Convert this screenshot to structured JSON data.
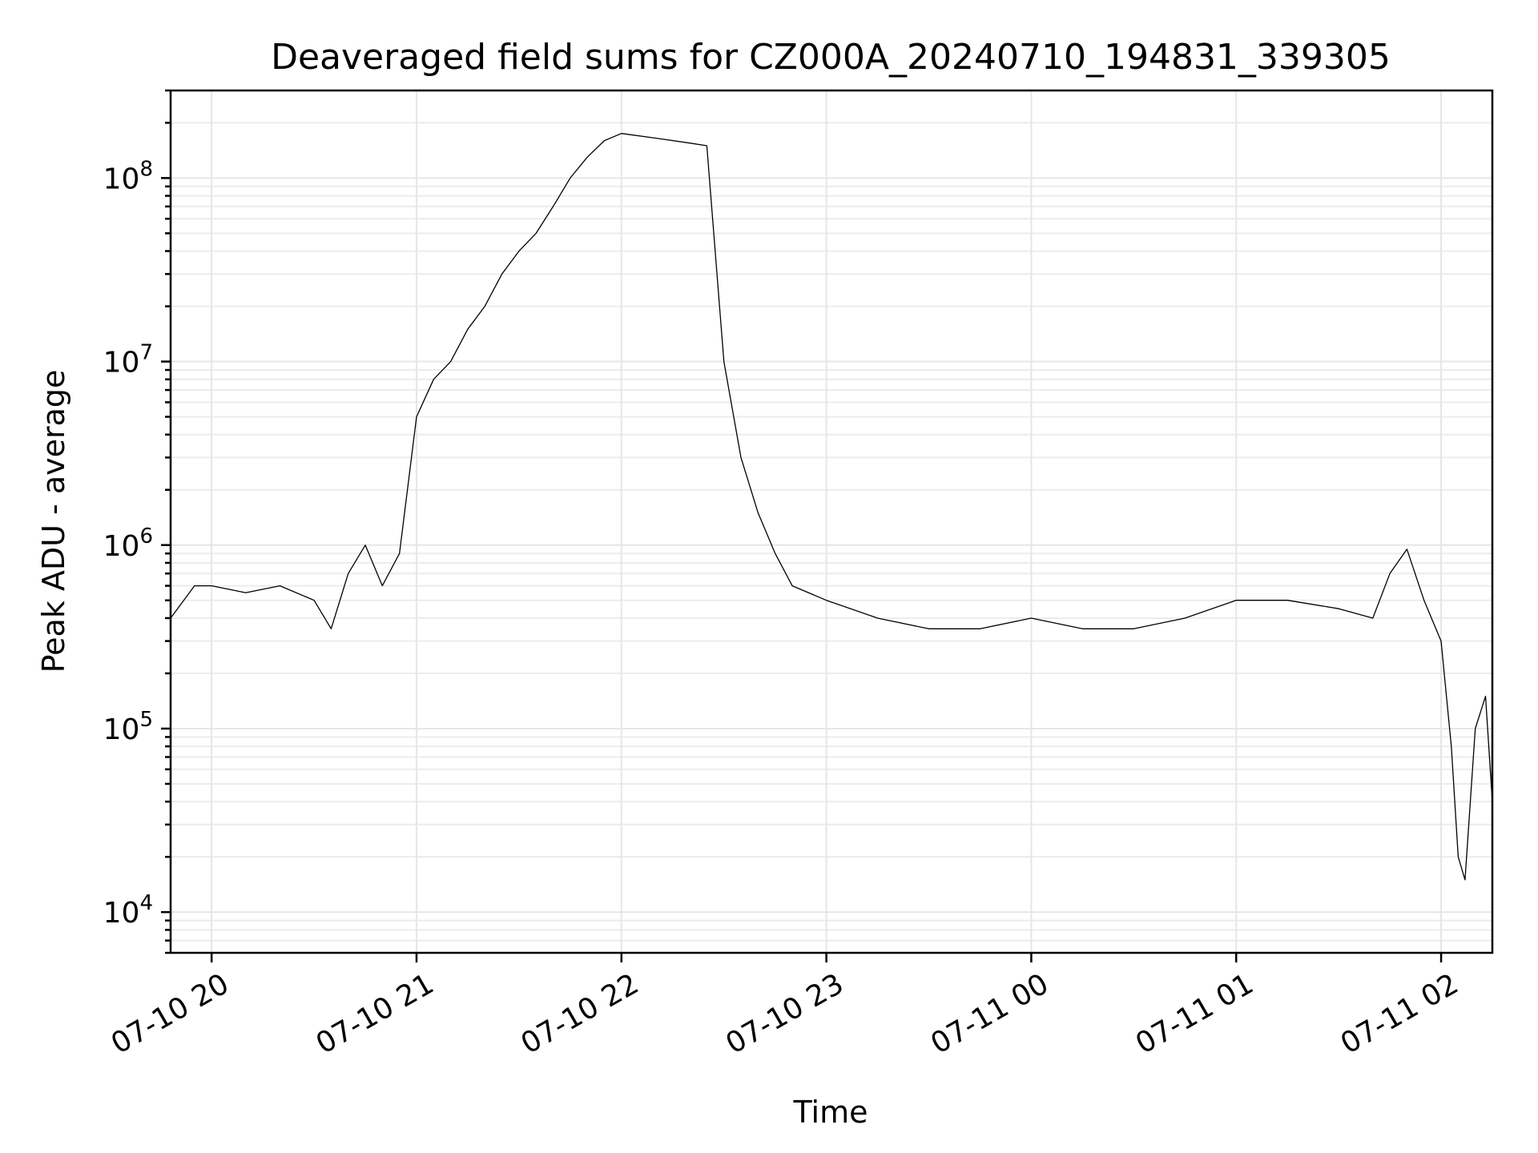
{
  "chart_data": {
    "type": "line",
    "title": "Deaveraged field sums for CZ000A_20240710_194831_339305",
    "xlabel": "Time",
    "ylabel": "Peak ADU - average",
    "yscale": "log",
    "ylim": [
      6000,
      300000000
    ],
    "xlim": [
      "2024-07-10 19:48",
      "2024-07-11 02:15"
    ],
    "grid": true,
    "legend": "none",
    "line_color": "#000000",
    "x_ticks": [
      "07-10 20",
      "07-10 21",
      "07-10 22",
      "07-10 23",
      "07-11 00",
      "07-11 01",
      "07-11 02"
    ],
    "y_ticks": [
      {
        "base": "10",
        "exp": "4",
        "value": 10000
      },
      {
        "base": "10",
        "exp": "5",
        "value": 100000
      },
      {
        "base": "10",
        "exp": "6",
        "value": 1000000
      },
      {
        "base": "10",
        "exp": "7",
        "value": 10000000
      },
      {
        "base": "10",
        "exp": "8",
        "value": 100000000
      }
    ],
    "series": [
      {
        "values": [
          [
            "2024-07-10 19:48",
            400000
          ],
          [
            "2024-07-10 19:55",
            600000
          ],
          [
            "2024-07-10 20:00",
            600000
          ],
          [
            "2024-07-10 20:10",
            550000
          ],
          [
            "2024-07-10 20:20",
            600000
          ],
          [
            "2024-07-10 20:30",
            500000
          ],
          [
            "2024-07-10 20:35",
            350000
          ],
          [
            "2024-07-10 20:40",
            700000
          ],
          [
            "2024-07-10 20:45",
            1000000
          ],
          [
            "2024-07-10 20:50",
            600000
          ],
          [
            "2024-07-10 20:55",
            900000
          ],
          [
            "2024-07-10 21:00",
            5000000
          ],
          [
            "2024-07-10 21:05",
            8000000
          ],
          [
            "2024-07-10 21:10",
            10000000
          ],
          [
            "2024-07-10 21:15",
            15000000
          ],
          [
            "2024-07-10 21:20",
            20000000
          ],
          [
            "2024-07-10 21:25",
            30000000
          ],
          [
            "2024-07-10 21:30",
            40000000
          ],
          [
            "2024-07-10 21:35",
            50000000
          ],
          [
            "2024-07-10 21:40",
            70000000
          ],
          [
            "2024-07-10 21:45",
            100000000
          ],
          [
            "2024-07-10 21:50",
            130000000
          ],
          [
            "2024-07-10 21:55",
            160000000
          ],
          [
            "2024-07-10 22:00",
            175000000
          ],
          [
            "2024-07-10 22:10",
            165000000
          ],
          [
            "2024-07-10 22:20",
            155000000
          ],
          [
            "2024-07-10 22:25",
            150000000
          ],
          [
            "2024-07-10 22:30",
            10000000
          ],
          [
            "2024-07-10 22:35",
            3000000
          ],
          [
            "2024-07-10 22:40",
            1500000
          ],
          [
            "2024-07-10 22:45",
            900000
          ],
          [
            "2024-07-10 22:50",
            600000
          ],
          [
            "2024-07-10 23:00",
            500000
          ],
          [
            "2024-07-10 23:15",
            400000
          ],
          [
            "2024-07-10 23:30",
            350000
          ],
          [
            "2024-07-10 23:45",
            350000
          ],
          [
            "2024-07-11 00:00",
            400000
          ],
          [
            "2024-07-11 00:15",
            350000
          ],
          [
            "2024-07-11 00:30",
            350000
          ],
          [
            "2024-07-11 00:45",
            400000
          ],
          [
            "2024-07-11 01:00",
            500000
          ],
          [
            "2024-07-11 01:15",
            500000
          ],
          [
            "2024-07-11 01:30",
            450000
          ],
          [
            "2024-07-11 01:40",
            400000
          ],
          [
            "2024-07-11 01:45",
            700000
          ],
          [
            "2024-07-11 01:50",
            950000
          ],
          [
            "2024-07-11 01:55",
            500000
          ],
          [
            "2024-07-11 02:00",
            300000
          ],
          [
            "2024-07-11 02:03",
            80000
          ],
          [
            "2024-07-11 02:05",
            20000
          ],
          [
            "2024-07-11 02:07",
            15000
          ],
          [
            "2024-07-11 02:10",
            100000
          ],
          [
            "2024-07-11 02:13",
            150000
          ],
          [
            "2024-07-11 02:15",
            40000
          ]
        ]
      }
    ]
  }
}
